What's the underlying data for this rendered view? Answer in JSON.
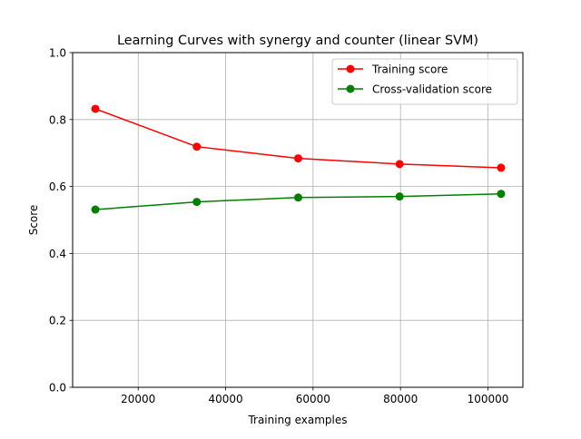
{
  "chart_data": {
    "type": "line",
    "title": "Learning Curves with synergy and counter (linear SVM)",
    "xlabel": "Training examples",
    "ylabel": "Score",
    "xlim": [
      5000,
      108000
    ],
    "ylim": [
      0.0,
      1.0
    ],
    "grid": true,
    "legend_position": "top-right",
    "x_ticks": [
      20000,
      40000,
      60000,
      80000,
      100000
    ],
    "x_tick_labels": [
      "20000",
      "40000",
      "60000",
      "80000",
      "100000"
    ],
    "y_ticks": [
      0.0,
      0.2,
      0.4,
      0.6,
      0.8,
      1.0
    ],
    "y_tick_labels": [
      "0.0",
      "0.2",
      "0.4",
      "0.6",
      "0.8",
      "1.0"
    ],
    "series": [
      {
        "name": "Training score",
        "color": "#ff0000",
        "x": [
          10200,
          33400,
          56600,
          79800,
          103000
        ],
        "y": [
          0.832,
          0.719,
          0.684,
          0.667,
          0.656
        ]
      },
      {
        "name": "Cross-validation score",
        "color": "#008000",
        "x": [
          10200,
          33400,
          56600,
          79800,
          103000
        ],
        "y": [
          0.531,
          0.554,
          0.567,
          0.57,
          0.578
        ]
      }
    ]
  }
}
